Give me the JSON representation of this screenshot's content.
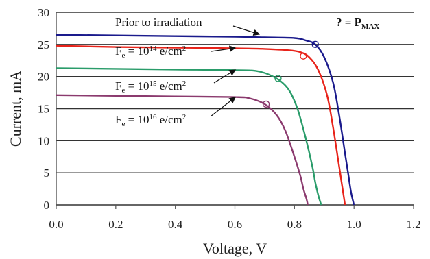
{
  "chart_data": {
    "type": "line",
    "xlabel": "Voltage, V",
    "ylabel": "Current, mA",
    "xlim": [
      0.0,
      1.2
    ],
    "ylim": [
      0,
      30
    ],
    "x_ticks": [
      "0.0",
      "0.2",
      "0.4",
      "0.6",
      "0.8",
      "1.0",
      "1.2"
    ],
    "y_ticks": [
      "0",
      "5",
      "10",
      "15",
      "20",
      "25",
      "30"
    ],
    "grid": "horizontal",
    "marker_note": {
      "symbol": "?",
      "equals": " = P",
      "subscript": "MAX"
    },
    "series": [
      {
        "label": "Prior to irradiation",
        "color": "#1a1a8c",
        "x": [
          0.0,
          0.2,
          0.4,
          0.6,
          0.7,
          0.8,
          0.84,
          0.87,
          0.9,
          0.93,
          0.95,
          0.97,
          0.98,
          0.99,
          1.0
        ],
        "y": [
          26.5,
          26.4,
          26.3,
          26.2,
          26.1,
          26.0,
          25.6,
          25.0,
          23.0,
          19.0,
          14.0,
          8.0,
          5.0,
          2.0,
          0.0
        ],
        "pmax": [
          0.87,
          25.0
        ]
      },
      {
        "label_parts": {
          "prefix": "F",
          "sub": "e",
          "eq": " = 10",
          "exp": "14",
          "unit": " e/cm",
          "unit_exp": "2"
        },
        "color": "#e8231a",
        "x": [
          0.0,
          0.2,
          0.4,
          0.6,
          0.7,
          0.78,
          0.82,
          0.85,
          0.88,
          0.91,
          0.93,
          0.95,
          0.96,
          0.97
        ],
        "y": [
          24.8,
          24.6,
          24.5,
          24.4,
          24.3,
          24.1,
          23.8,
          23.0,
          21.0,
          17.0,
          12.0,
          6.0,
          3.0,
          0.0
        ],
        "pmax": [
          0.83,
          23.2
        ]
      },
      {
        "label_parts": {
          "prefix": "F",
          "sub": "e",
          "eq": " = 10",
          "exp": "15",
          "unit": " e/cm",
          "unit_exp": "2"
        },
        "color": "#2a9c6a",
        "x": [
          0.0,
          0.2,
          0.4,
          0.6,
          0.68,
          0.74,
          0.78,
          0.81,
          0.84,
          0.86,
          0.87,
          0.88,
          0.89
        ],
        "y": [
          21.3,
          21.2,
          21.1,
          21.0,
          20.8,
          19.7,
          18.0,
          15.0,
          10.0,
          6.0,
          3.5,
          1.5,
          0.0
        ],
        "pmax": [
          0.745,
          19.7
        ]
      },
      {
        "label_parts": {
          "prefix": "F",
          "sub": "e",
          "eq": " = 10",
          "exp": "16",
          "unit": " e/cm",
          "unit_exp": "2"
        },
        "color": "#8b3a6e",
        "x": [
          0.0,
          0.2,
          0.4,
          0.6,
          0.65,
          0.7,
          0.74,
          0.77,
          0.8,
          0.82,
          0.83,
          0.84,
          0.845
        ],
        "y": [
          17.1,
          17.0,
          16.9,
          16.8,
          16.6,
          15.7,
          14.0,
          11.5,
          7.5,
          4.5,
          2.5,
          1.0,
          0.0
        ],
        "pmax": [
          0.705,
          15.7
        ]
      }
    ]
  }
}
